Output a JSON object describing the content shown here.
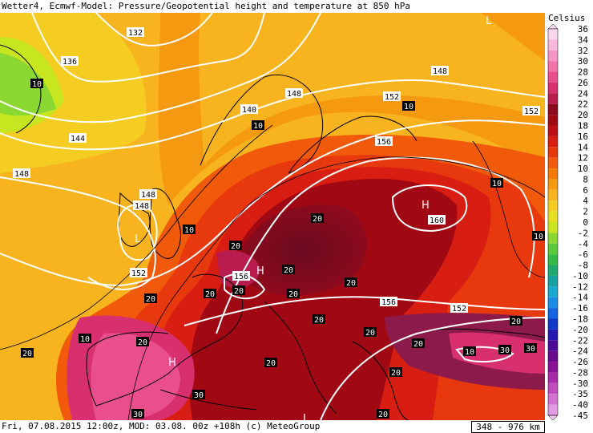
{
  "header": {
    "title": "Wetter4, Ecmwf-Model: Pressure/Geopotential height and temperature at 850 hPa"
  },
  "legend": {
    "unit": "Celsius",
    "ticks": [
      "36",
      "34",
      "32",
      "30",
      "28",
      "26",
      "24",
      "22",
      "20",
      "18",
      "16",
      "14",
      "12",
      "10",
      "8",
      "6",
      "4",
      "2",
      "0",
      "-2",
      "-4",
      "-6",
      "-8",
      "-10",
      "-12",
      "-14",
      "-16",
      "-18",
      "-20",
      "-22",
      "-24",
      "-26",
      "-28",
      "-30",
      "-35",
      "-40",
      "-45"
    ],
    "colors": [
      "#fbd8ee",
      "#f8b8dc",
      "#f696c4",
      "#f273aa",
      "#ea4f8d",
      "#d8306e",
      "#b81c4c",
      "#8c0a1c",
      "#a00814",
      "#bc0e14",
      "#d81e12",
      "#e8380e",
      "#f05a0a",
      "#f47a08",
      "#f59a10",
      "#f7b41e",
      "#f5cd22",
      "#e6de20",
      "#c8e620",
      "#8cd832",
      "#5cc93a",
      "#34ba46",
      "#1ea870",
      "#16a0a0",
      "#18a8d0",
      "#1a8ee6",
      "#1464e0",
      "#1238c8",
      "#2418b0",
      "#4a0c98",
      "#6a0a8c",
      "#8a1096",
      "#a82aa8",
      "#c04cbe",
      "#d272d0",
      "#e29ae2",
      "#f0c8f0"
    ]
  },
  "map": {
    "height_labels": [
      "132",
      "136",
      "140",
      "144",
      "148",
      "148",
      "148",
      "148",
      "152",
      "152",
      "152",
      "156",
      "156",
      "156",
      "160",
      "148",
      "152"
    ],
    "temp_labels": [
      "10",
      "10",
      "10",
      "10",
      "20",
      "20",
      "20",
      "20",
      "20",
      "20",
      "20",
      "20",
      "20",
      "20",
      "20",
      "20",
      "20",
      "30",
      "30",
      "30",
      "30",
      "20",
      "10",
      "20",
      "10",
      "10",
      "10",
      "20",
      "20"
    ],
    "centers": [
      {
        "letter": "L",
        "kind": "low"
      },
      {
        "letter": "L",
        "kind": "low"
      },
      {
        "letter": "H",
        "kind": "high"
      },
      {
        "letter": "H",
        "kind": "high"
      },
      {
        "letter": "H",
        "kind": "high"
      },
      {
        "letter": "L",
        "kind": "low"
      }
    ]
  },
  "footer": {
    "caption": "Fri, 07.08.2015 12:00z, MOD: 03.08. 00z +108h (c) MeteoGroup",
    "scale": "348 - 976 km"
  }
}
